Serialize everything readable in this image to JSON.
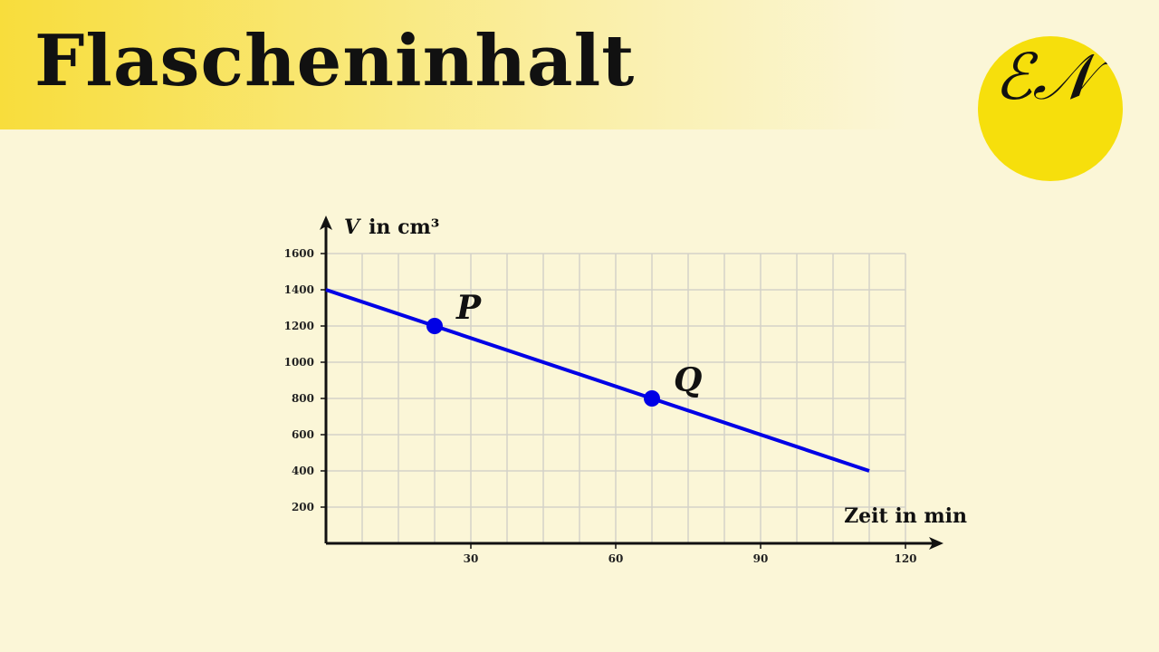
{
  "header": {
    "title": "Flascheninhalt"
  },
  "logo": {
    "text": "EN"
  },
  "chart_data": {
    "type": "line",
    "title": "",
    "xlabel": "Zeit in min",
    "ylabel_var": "V",
    "ylabel_unit": "in cm³",
    "xlim": [
      0,
      120
    ],
    "ylim": [
      0,
      1600
    ],
    "x_ticks": [
      30,
      60,
      90,
      120
    ],
    "y_ticks": [
      200,
      400,
      600,
      800,
      1000,
      1200,
      1400,
      1600
    ],
    "x_grid_step": 7.5,
    "y_grid_step": 200,
    "grid": true,
    "series": [
      {
        "x": [
          0,
          112.5
        ],
        "y": [
          1400,
          400
        ],
        "color": "#0000e6"
      }
    ],
    "points": [
      {
        "label": "P",
        "x": 22.5,
        "y": 1200
      },
      {
        "label": "Q",
        "x": 67.5,
        "y": 800
      }
    ]
  }
}
